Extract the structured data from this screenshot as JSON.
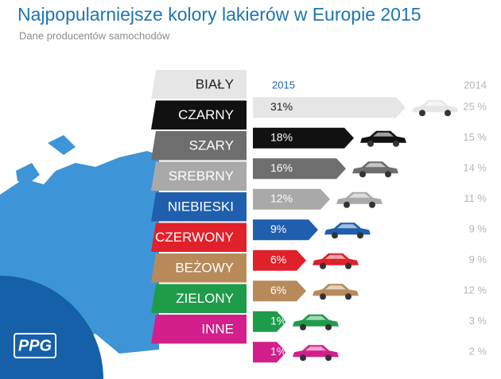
{
  "logo": "PPG",
  "chart_data": {
    "type": "bar",
    "title": "Najpopularniejsze kolory lakierów w Europie 2015",
    "subtitle": "Dane producentów samochodów",
    "categories": [
      "BIAŁY",
      "CZARNY",
      "SZARY",
      "SREBRNY",
      "NIEBIESKI",
      "CZERWONY",
      "BEŻOWY",
      "ZIELONY",
      "INNE"
    ],
    "colors": [
      "#e6e6e6",
      "#111111",
      "#6e6e6e",
      "#a9a9a9",
      "#1f5fae",
      "#e0202a",
      "#b88a5a",
      "#1e9c4a",
      "#d21f8c"
    ],
    "series": [
      {
        "name": "2015",
        "color": "#1f5fae",
        "values": [
          31,
          18,
          16,
          12,
          9,
          6,
          6,
          1,
          1
        ],
        "value_labels": [
          "31%",
          "18%",
          "16%",
          "12%",
          "9%",
          "6%",
          "6%",
          "1%",
          "1%"
        ]
      },
      {
        "name": "2014",
        "color": "#b5b5b5",
        "values": [
          25,
          15,
          14,
          11,
          9,
          9,
          12,
          3,
          2
        ],
        "value_labels": [
          "25 %",
          "15 %",
          "14 %",
          "11 %",
          "9 %",
          "9 %",
          "12 %",
          "3 %",
          "2 %"
        ]
      }
    ]
  }
}
